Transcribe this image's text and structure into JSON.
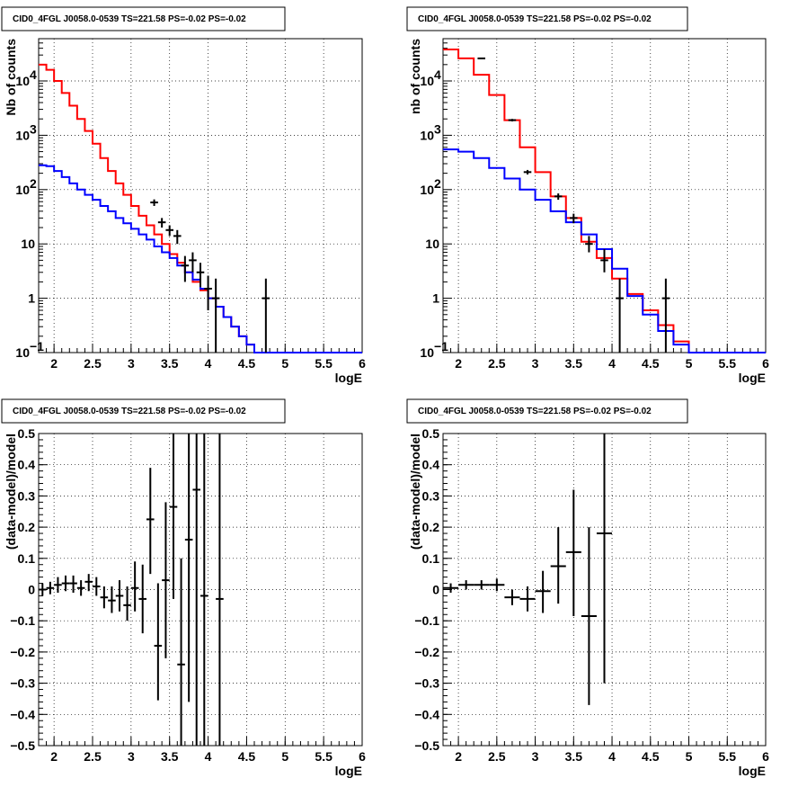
{
  "chart_data": [
    {
      "type": "line",
      "panel": "top-left",
      "title": "CID0_4FGL J0058.0-0539 TS=221.58 PS=-0.02 PS=-0.02",
      "xlabel": "logE",
      "ylabel": "Nb of counts",
      "xlim": [
        1.8,
        6.0
      ],
      "ylim": [
        0.1,
        60000
      ],
      "yscale": "log",
      "grid": true,
      "xticks": [
        {
          "v": 2,
          "label": "2"
        },
        {
          "v": 2.5,
          "label": "2.5"
        },
        {
          "v": 3,
          "label": "3"
        },
        {
          "v": 3.5,
          "label": "3.5"
        },
        {
          "v": 4,
          "label": "4"
        },
        {
          "v": 4.5,
          "label": "4.5"
        },
        {
          "v": 5,
          "label": "5"
        },
        {
          "v": 5.5,
          "label": "5.5"
        },
        {
          "v": 6,
          "label": "6"
        }
      ],
      "yticks": [
        {
          "v": 0.1,
          "label": "10",
          "sup": "−1"
        },
        {
          "v": 1,
          "label": "1"
        },
        {
          "v": 10,
          "label": "10"
        },
        {
          "v": 100,
          "label": "10",
          "sup": "2"
        },
        {
          "v": 1000,
          "label": "10",
          "sup": "3"
        },
        {
          "v": 10000,
          "label": "10",
          "sup": "4"
        }
      ],
      "bin_edges": [
        1.8,
        1.9,
        2.0,
        2.1,
        2.2,
        2.3,
        2.4,
        2.5,
        2.6,
        2.7,
        2.8,
        2.9,
        3.0,
        3.1,
        3.2,
        3.3,
        3.4,
        3.5,
        3.6,
        3.7,
        3.8,
        3.9,
        4.0,
        4.1,
        4.2,
        4.3,
        4.4,
        4.5,
        4.6,
        4.7,
        4.8,
        4.9,
        5.0,
        5.1,
        5.2,
        5.3,
        5.4,
        5.5,
        5.6,
        5.7,
        5.8,
        5.9,
        6.0
      ],
      "series": [
        {
          "color": "#ff0000",
          "style": "hist",
          "values": [
            20000,
            16000,
            10000,
            6000,
            3500,
            2000,
            1200,
            700,
            380,
            220,
            130,
            80,
            50,
            33,
            22,
            15,
            10,
            6.5,
            4.5,
            3.0,
            2.0,
            1.4,
            1.0,
            0.7,
            0.45,
            0.3,
            0.2,
            0.14,
            0.1,
            0.1,
            0.1,
            0.1,
            0.1,
            0.1,
            0.1,
            0.1,
            0.1,
            0.1,
            0.1,
            0.1,
            0.1,
            0.1
          ]
        },
        {
          "color": "#0000ff",
          "style": "hist",
          "values": [
            280,
            270,
            220,
            170,
            130,
            100,
            80,
            65,
            50,
            40,
            30,
            24,
            19,
            15,
            12,
            9,
            7,
            5.5,
            4.0,
            3.0,
            2.2,
            1.5,
            1.0,
            0.7,
            0.45,
            0.3,
            0.2,
            0.14,
            0.1,
            0.1,
            0.1,
            0.1,
            0.1,
            0.1,
            0.1,
            0.1,
            0.1,
            0.1,
            0.1,
            0.1,
            0.1,
            0.1
          ]
        },
        {
          "color": "#000000",
          "style": "errors",
          "points": [
            {
              "x": 3.3,
              "y": 58,
              "lo": 50,
              "hi": 66
            },
            {
              "x": 3.4,
              "y": 25,
              "lo": 20,
              "hi": 30
            },
            {
              "x": 3.5,
              "y": 18,
              "lo": 14,
              "hi": 22
            },
            {
              "x": 3.6,
              "y": 14,
              "lo": 10,
              "hi": 18
            },
            {
              "x": 3.7,
              "y": 4,
              "lo": 2,
              "hi": 6
            },
            {
              "x": 3.8,
              "y": 5,
              "lo": 3,
              "hi": 7
            },
            {
              "x": 3.9,
              "y": 3,
              "lo": 1.6,
              "hi": 4.5
            },
            {
              "x": 4.0,
              "y": 1.5,
              "lo": 0.6,
              "hi": 2.6
            },
            {
              "x": 4.1,
              "y": 1,
              "lo": 0.1,
              "hi": 2.3
            },
            {
              "x": 4.75,
              "y": 1,
              "lo": 0.1,
              "hi": 2.3
            }
          ]
        }
      ]
    },
    {
      "type": "line",
      "panel": "top-right",
      "title": "CID0_4FGL J0058.0-0539 TS=221.58 PS=-0.02 PS=-0.02",
      "xlabel": "logE",
      "ylabel": "nb of counts",
      "xlim": [
        1.8,
        6.0
      ],
      "ylim": [
        0.1,
        60000
      ],
      "yscale": "log",
      "grid": true,
      "xticks": [
        {
          "v": 2,
          "label": "2"
        },
        {
          "v": 2.5,
          "label": "2.5"
        },
        {
          "v": 3,
          "label": "3"
        },
        {
          "v": 3.5,
          "label": "3.5"
        },
        {
          "v": 4,
          "label": "4"
        },
        {
          "v": 4.5,
          "label": "4.5"
        },
        {
          "v": 5,
          "label": "5"
        },
        {
          "v": 5.5,
          "label": "5.5"
        },
        {
          "v": 6,
          "label": "6"
        }
      ],
      "yticks": [
        {
          "v": 0.1,
          "label": "10",
          "sup": "−1"
        },
        {
          "v": 1,
          "label": "1"
        },
        {
          "v": 10,
          "label": "10"
        },
        {
          "v": 100,
          "label": "10",
          "sup": "2"
        },
        {
          "v": 1000,
          "label": "10",
          "sup": "3"
        },
        {
          "v": 10000,
          "label": "10",
          "sup": "4"
        }
      ],
      "bin_edges": [
        1.8,
        2.0,
        2.2,
        2.4,
        2.6,
        2.8,
        3.0,
        3.2,
        3.4,
        3.6,
        3.8,
        4.0,
        4.2,
        4.4,
        4.6,
        4.8,
        5.0,
        5.2,
        5.4,
        5.6,
        5.8,
        6.0
      ],
      "series": [
        {
          "color": "#ff0000",
          "style": "hist",
          "values": [
            38000,
            26000,
            13000,
            5500,
            1900,
            600,
            210,
            75,
            30,
            11,
            5.5,
            2.3,
            1.2,
            0.6,
            0.32,
            0.16,
            0.1,
            0.1,
            0.1,
            0.1,
            0.1
          ]
        },
        {
          "color": "#0000ff",
          "style": "hist",
          "values": [
            550,
            500,
            380,
            250,
            160,
            100,
            65,
            40,
            25,
            15,
            8,
            3.5,
            1.1,
            0.5,
            0.25,
            0.14,
            0.1,
            0.1,
            0.1,
            0.1,
            0.1
          ]
        },
        {
          "color": "#000000",
          "style": "errors",
          "points": [
            {
              "x": 2.3,
              "y": 26000,
              "lo": 25500,
              "hi": 26500
            },
            {
              "x": 2.7,
              "y": 1900,
              "lo": 1800,
              "hi": 2000
            },
            {
              "x": 2.9,
              "y": 210,
              "lo": 190,
              "hi": 230
            },
            {
              "x": 3.3,
              "y": 75,
              "lo": 65,
              "hi": 85
            },
            {
              "x": 3.5,
              "y": 30,
              "lo": 24,
              "hi": 36
            },
            {
              "x": 3.7,
              "y": 10,
              "lo": 7,
              "hi": 14
            },
            {
              "x": 3.9,
              "y": 5,
              "lo": 3,
              "hi": 8
            },
            {
              "x": 4.1,
              "y": 1,
              "lo": 0.1,
              "hi": 2.3
            },
            {
              "x": 4.7,
              "y": 1,
              "lo": 0.1,
              "hi": 2.3
            }
          ]
        }
      ]
    },
    {
      "type": "scatter",
      "panel": "bottom-left",
      "title": "CID0_4FGL J0058.0-0539 TS=221.58 PS=-0.02 PS=-0.02",
      "xlabel": "logE",
      "ylabel": "(data-model)/model",
      "xlim": [
        1.8,
        6.0
      ],
      "ylim": [
        -0.5,
        0.5
      ],
      "yscale": "linear",
      "grid": true,
      "xticks": [
        {
          "v": 2,
          "label": "2"
        },
        {
          "v": 2.5,
          "label": "2.5"
        },
        {
          "v": 3,
          "label": "3"
        },
        {
          "v": 3.5,
          "label": "3.5"
        },
        {
          "v": 4,
          "label": "4"
        },
        {
          "v": 4.5,
          "label": "4.5"
        },
        {
          "v": 5,
          "label": "5"
        },
        {
          "v": 5.5,
          "label": "5.5"
        },
        {
          "v": 6,
          "label": "6"
        }
      ],
      "yticks": [
        {
          "v": -0.5,
          "label": "−0.5"
        },
        {
          "v": -0.4,
          "label": "−0.4"
        },
        {
          "v": -0.3,
          "label": "−0.3"
        },
        {
          "v": -0.2,
          "label": "−0.2"
        },
        {
          "v": -0.1,
          "label": "−0.1"
        },
        {
          "v": 0,
          "label": "0"
        },
        {
          "v": 0.1,
          "label": "0.1"
        },
        {
          "v": 0.2,
          "label": "0.2"
        },
        {
          "v": 0.3,
          "label": "0.3"
        },
        {
          "v": 0.4,
          "label": "0.4"
        },
        {
          "v": 0.5,
          "label": "0.5"
        }
      ],
      "series": [
        {
          "color": "#000000",
          "style": "errors",
          "xhalf": 0.05,
          "points": [
            {
              "x": 1.85,
              "y": 0.0,
              "lo": -0.02,
              "hi": 0.02
            },
            {
              "x": 1.95,
              "y": 0.005,
              "lo": -0.015,
              "hi": 0.025
            },
            {
              "x": 2.05,
              "y": 0.015,
              "lo": -0.01,
              "hi": 0.04
            },
            {
              "x": 2.15,
              "y": 0.02,
              "lo": -0.005,
              "hi": 0.045
            },
            {
              "x": 2.25,
              "y": 0.02,
              "lo": -0.01,
              "hi": 0.045
            },
            {
              "x": 2.35,
              "y": 0.005,
              "lo": -0.02,
              "hi": 0.03
            },
            {
              "x": 2.45,
              "y": 0.025,
              "lo": -0.005,
              "hi": 0.05
            },
            {
              "x": 2.55,
              "y": 0.01,
              "lo": -0.02,
              "hi": 0.04
            },
            {
              "x": 2.65,
              "y": -0.025,
              "lo": -0.06,
              "hi": 0.01
            },
            {
              "x": 2.75,
              "y": -0.035,
              "lo": -0.075,
              "hi": 0.01
            },
            {
              "x": 2.85,
              "y": -0.02,
              "lo": -0.07,
              "hi": 0.03
            },
            {
              "x": 2.95,
              "y": -0.05,
              "lo": -0.1,
              "hi": 0.01
            },
            {
              "x": 3.05,
              "y": 0.005,
              "lo": -0.07,
              "hi": 0.09
            },
            {
              "x": 3.15,
              "y": -0.03,
              "lo": -0.14,
              "hi": 0.08
            },
            {
              "x": 3.25,
              "y": 0.225,
              "lo": 0.05,
              "hi": 0.39
            },
            {
              "x": 3.35,
              "y": -0.18,
              "lo": -0.355,
              "hi": 0.02
            },
            {
              "x": 3.45,
              "y": 0.03,
              "lo": -0.22,
              "hi": 0.28
            },
            {
              "x": 3.55,
              "y": 0.265,
              "lo": -0.03,
              "hi": 0.5
            },
            {
              "x": 3.65,
              "y": -0.24,
              "lo": -0.5,
              "hi": 0.1
            },
            {
              "x": 3.75,
              "y": 0.16,
              "lo": -0.36,
              "hi": 0.5
            },
            {
              "x": 3.85,
              "y": 0.32,
              "lo": -0.5,
              "hi": 0.5
            },
            {
              "x": 3.95,
              "y": -0.02,
              "lo": -0.5,
              "hi": 0.5
            },
            {
              "x": 4.15,
              "y": -0.03,
              "lo": -0.5,
              "hi": 0.5
            }
          ]
        }
      ]
    },
    {
      "type": "scatter",
      "panel": "bottom-right",
      "title": "CID0_4FGL J0058.0-0539 TS=221.58 PS=-0.02 PS=-0.02",
      "xlabel": "logE",
      "ylabel": "(data-model)/model",
      "xlim": [
        1.8,
        6.0
      ],
      "ylim": [
        -0.5,
        0.5
      ],
      "yscale": "linear",
      "grid": true,
      "xticks": [
        {
          "v": 2,
          "label": "2"
        },
        {
          "v": 2.5,
          "label": "2.5"
        },
        {
          "v": 3,
          "label": "3"
        },
        {
          "v": 3.5,
          "label": "3.5"
        },
        {
          "v": 4,
          "label": "4"
        },
        {
          "v": 4.5,
          "label": "4.5"
        },
        {
          "v": 5,
          "label": "5"
        },
        {
          "v": 5.5,
          "label": "5.5"
        },
        {
          "v": 6,
          "label": "6"
        }
      ],
      "yticks": [
        {
          "v": -0.5,
          "label": "−0.5"
        },
        {
          "v": -0.4,
          "label": "−0.4"
        },
        {
          "v": -0.3,
          "label": "−0.3"
        },
        {
          "v": -0.2,
          "label": "−0.2"
        },
        {
          "v": -0.1,
          "label": "−0.1"
        },
        {
          "v": 0,
          "label": "0"
        },
        {
          "v": 0.1,
          "label": "0.1"
        },
        {
          "v": 0.2,
          "label": "0.2"
        },
        {
          "v": 0.3,
          "label": "0.3"
        },
        {
          "v": 0.4,
          "label": "0.4"
        },
        {
          "v": 0.5,
          "label": "0.5"
        }
      ],
      "series": [
        {
          "color": "#000000",
          "style": "errors",
          "xhalf": 0.1,
          "points": [
            {
              "x": 1.9,
              "y": 0.005,
              "lo": -0.01,
              "hi": 0.02
            },
            {
              "x": 2.1,
              "y": 0.015,
              "lo": 0.0,
              "hi": 0.03
            },
            {
              "x": 2.3,
              "y": 0.015,
              "lo": 0.0,
              "hi": 0.03
            },
            {
              "x": 2.5,
              "y": 0.015,
              "lo": -0.005,
              "hi": 0.035
            },
            {
              "x": 2.7,
              "y": -0.025,
              "lo": -0.05,
              "hi": 0.0
            },
            {
              "x": 2.9,
              "y": -0.03,
              "lo": -0.07,
              "hi": 0.01
            },
            {
              "x": 3.1,
              "y": -0.005,
              "lo": -0.075,
              "hi": 0.06
            },
            {
              "x": 3.3,
              "y": 0.075,
              "lo": -0.045,
              "hi": 0.2
            },
            {
              "x": 3.5,
              "y": 0.12,
              "lo": -0.085,
              "hi": 0.32
            },
            {
              "x": 3.7,
              "y": -0.085,
              "lo": -0.37,
              "hi": 0.2
            },
            {
              "x": 3.9,
              "y": 0.18,
              "lo": -0.3,
              "hi": 0.5
            }
          ]
        }
      ]
    }
  ]
}
